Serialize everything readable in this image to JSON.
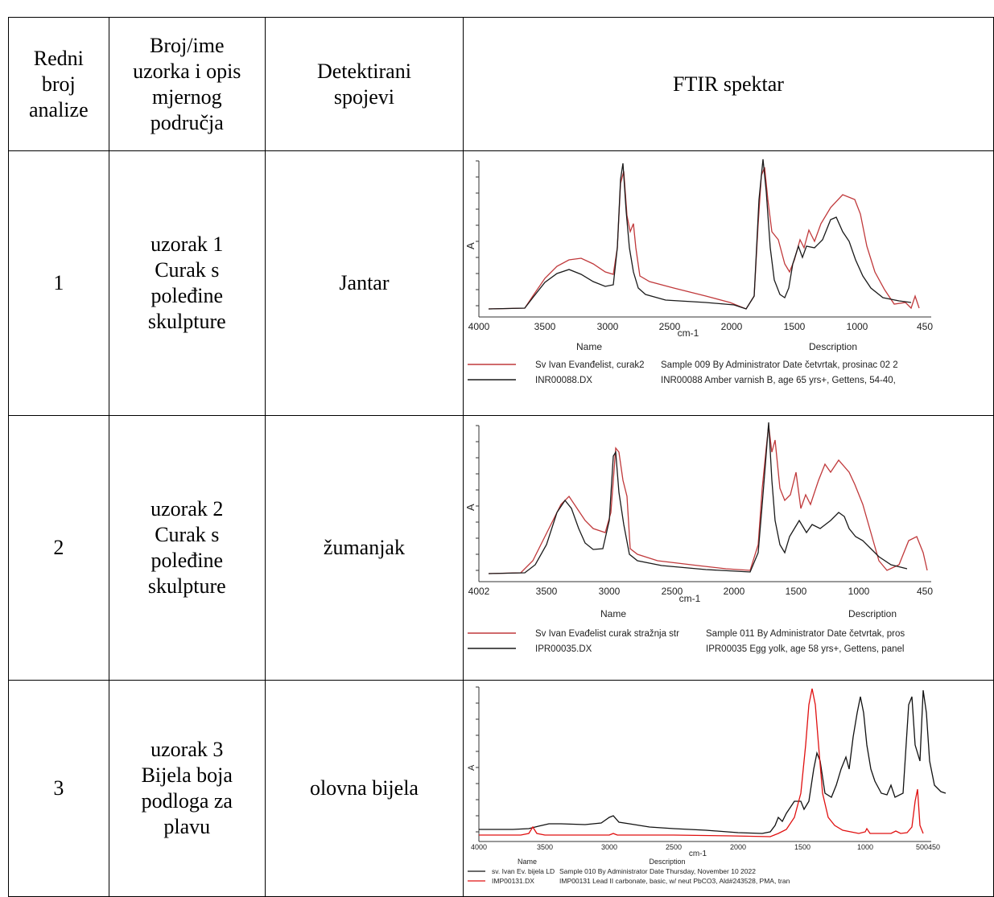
{
  "headers": {
    "col1": [
      "Redni",
      "broj",
      "analize"
    ],
    "col2": [
      "Broj/ime",
      "uzorka i opis",
      "mjernog",
      "područja"
    ],
    "col3": [
      "Detektirani",
      "spojevi"
    ],
    "col4": "FTIR spektar"
  },
  "rows": [
    {
      "num": "1",
      "sample": [
        "uzorak 1",
        "Curak s",
        "poleđine",
        "skulpture"
      ],
      "compound": "Jantar",
      "spectrum": {
        "y_label": "A",
        "x_ticks": [
          "4000",
          "3500",
          "3000",
          "2500",
          "2000",
          "1500",
          "1000",
          "450"
        ],
        "x_unit": "cm-1",
        "name_header": "Name",
        "desc_header": "Description",
        "legend": [
          {
            "name": "Sv Ivan Evanđelist, curak2",
            "desc": "Sample 009 By Administrator Date četvrtak, prosinac 02 2",
            "color": "#c0393b"
          },
          {
            "name": "INR00088.DX",
            "desc": "INR00088 Amber varnish B, age 65 yrs+, Gettens, 54-40,",
            "color": "#1a1a1a"
          }
        ]
      }
    },
    {
      "num": "2",
      "sample": [
        "uzorak 2",
        "Curak s",
        "poleđine",
        "skulpture"
      ],
      "compound": "žumanjak",
      "spectrum": {
        "y_label": "A",
        "x_ticks": [
          "4002",
          "3500",
          "3000",
          "2500",
          "2000",
          "1500",
          "1000",
          "450"
        ],
        "x_unit": "cm-1",
        "name_header": "Name",
        "desc_header": "Description",
        "legend": [
          {
            "name": "Sv Ivan Evađelist curak stražnja str",
            "desc": "Sample 011 By Administrator Date četvrtak, pros",
            "color": "#c0393b"
          },
          {
            "name": "IPR00035.DX",
            "desc": "IPR00035 Egg yolk, age 58 yrs+, Gettens, panel",
            "color": "#1a1a1a"
          }
        ]
      }
    },
    {
      "num": "3",
      "sample": [
        "uzorak 3",
        "Bijela boja",
        "podloga za",
        "plavu"
      ],
      "compound": "olovna bijela",
      "spectrum": {
        "y_label": "A",
        "x_ticks": [
          "4000",
          "3500",
          "3000",
          "2500",
          "2000",
          "1500",
          "1000",
          "500450"
        ],
        "x_unit": "cm-1",
        "name_header": "Name",
        "desc_header": "Description",
        "legend": [
          {
            "name": "sv. Ivan Ev. bijela LD",
            "desc": "Sample 010 By Administrator Date Thursday, November 10 2022",
            "color": "#111111"
          },
          {
            "name": "IMP00131.DX",
            "desc": "IMP00131 Lead II carbonate, basic, w/ neut PbCO3, Ald#243528, PMA, tran",
            "color": "#e01010"
          }
        ]
      }
    }
  ]
}
